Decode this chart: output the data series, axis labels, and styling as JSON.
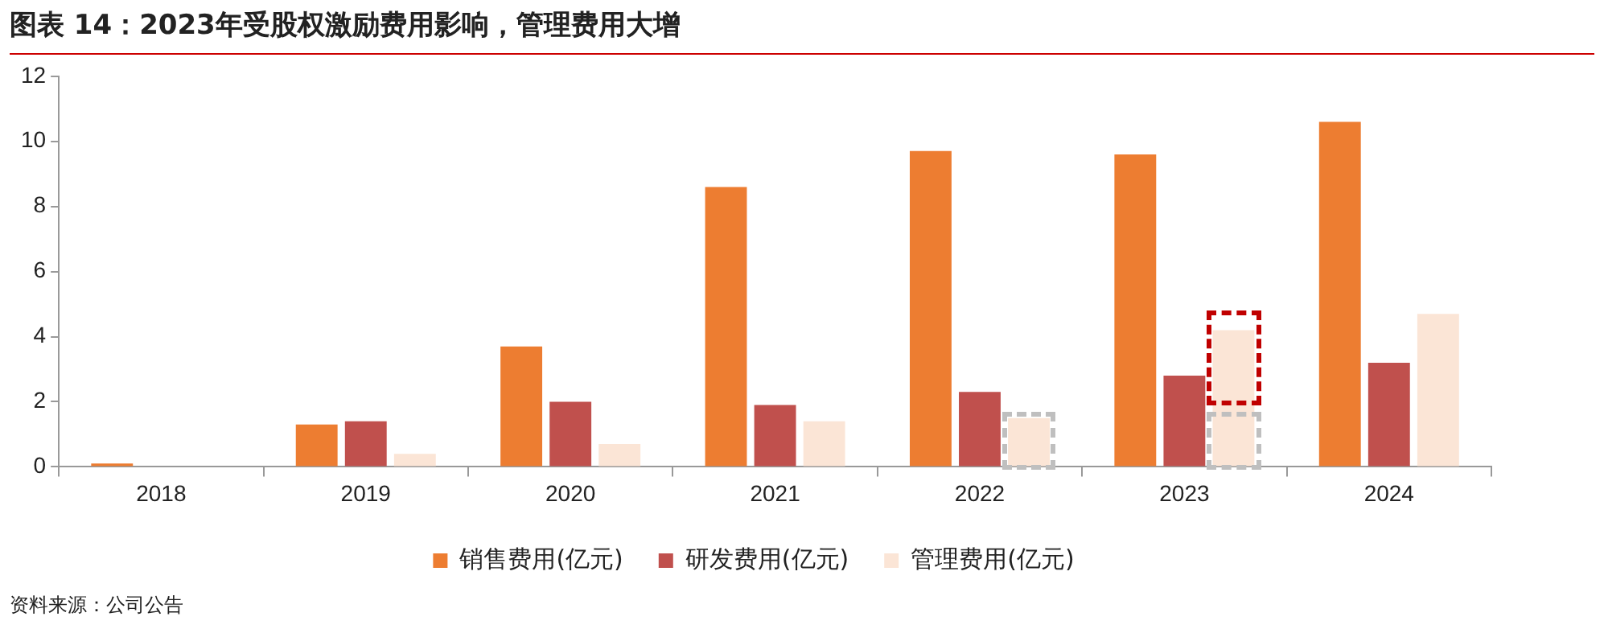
{
  "chart_data": {
    "type": "bar",
    "title": "图表 14：2023年受股权激励费用影响，管理费用大增",
    "categories": [
      "2018",
      "2019",
      "2020",
      "2021",
      "2022",
      "2023",
      "2024"
    ],
    "series": [
      {
        "name": "销售费用(亿元)",
        "color": "#ed7d31",
        "values": [
          0.1,
          1.3,
          3.7,
          8.6,
          9.7,
          9.6,
          10.6
        ]
      },
      {
        "name": "研发费用(亿元)",
        "color": "#c0504d",
        "values": [
          0,
          1.4,
          2,
          1.9,
          2.3,
          2.8,
          3.2
        ]
      },
      {
        "name": "管理费用(亿元)",
        "color": "#fbe5d6",
        "values": [
          0,
          0.4,
          0.7,
          1.4,
          1.5,
          4.2,
          4.7
        ]
      }
    ],
    "ylim": [
      0,
      12
    ],
    "yticks": [
      0,
      2,
      4,
      6,
      8,
      10,
      12
    ],
    "grid": false,
    "legend": "bottom",
    "annotations": [
      "资料来源：公司公告"
    ]
  }
}
